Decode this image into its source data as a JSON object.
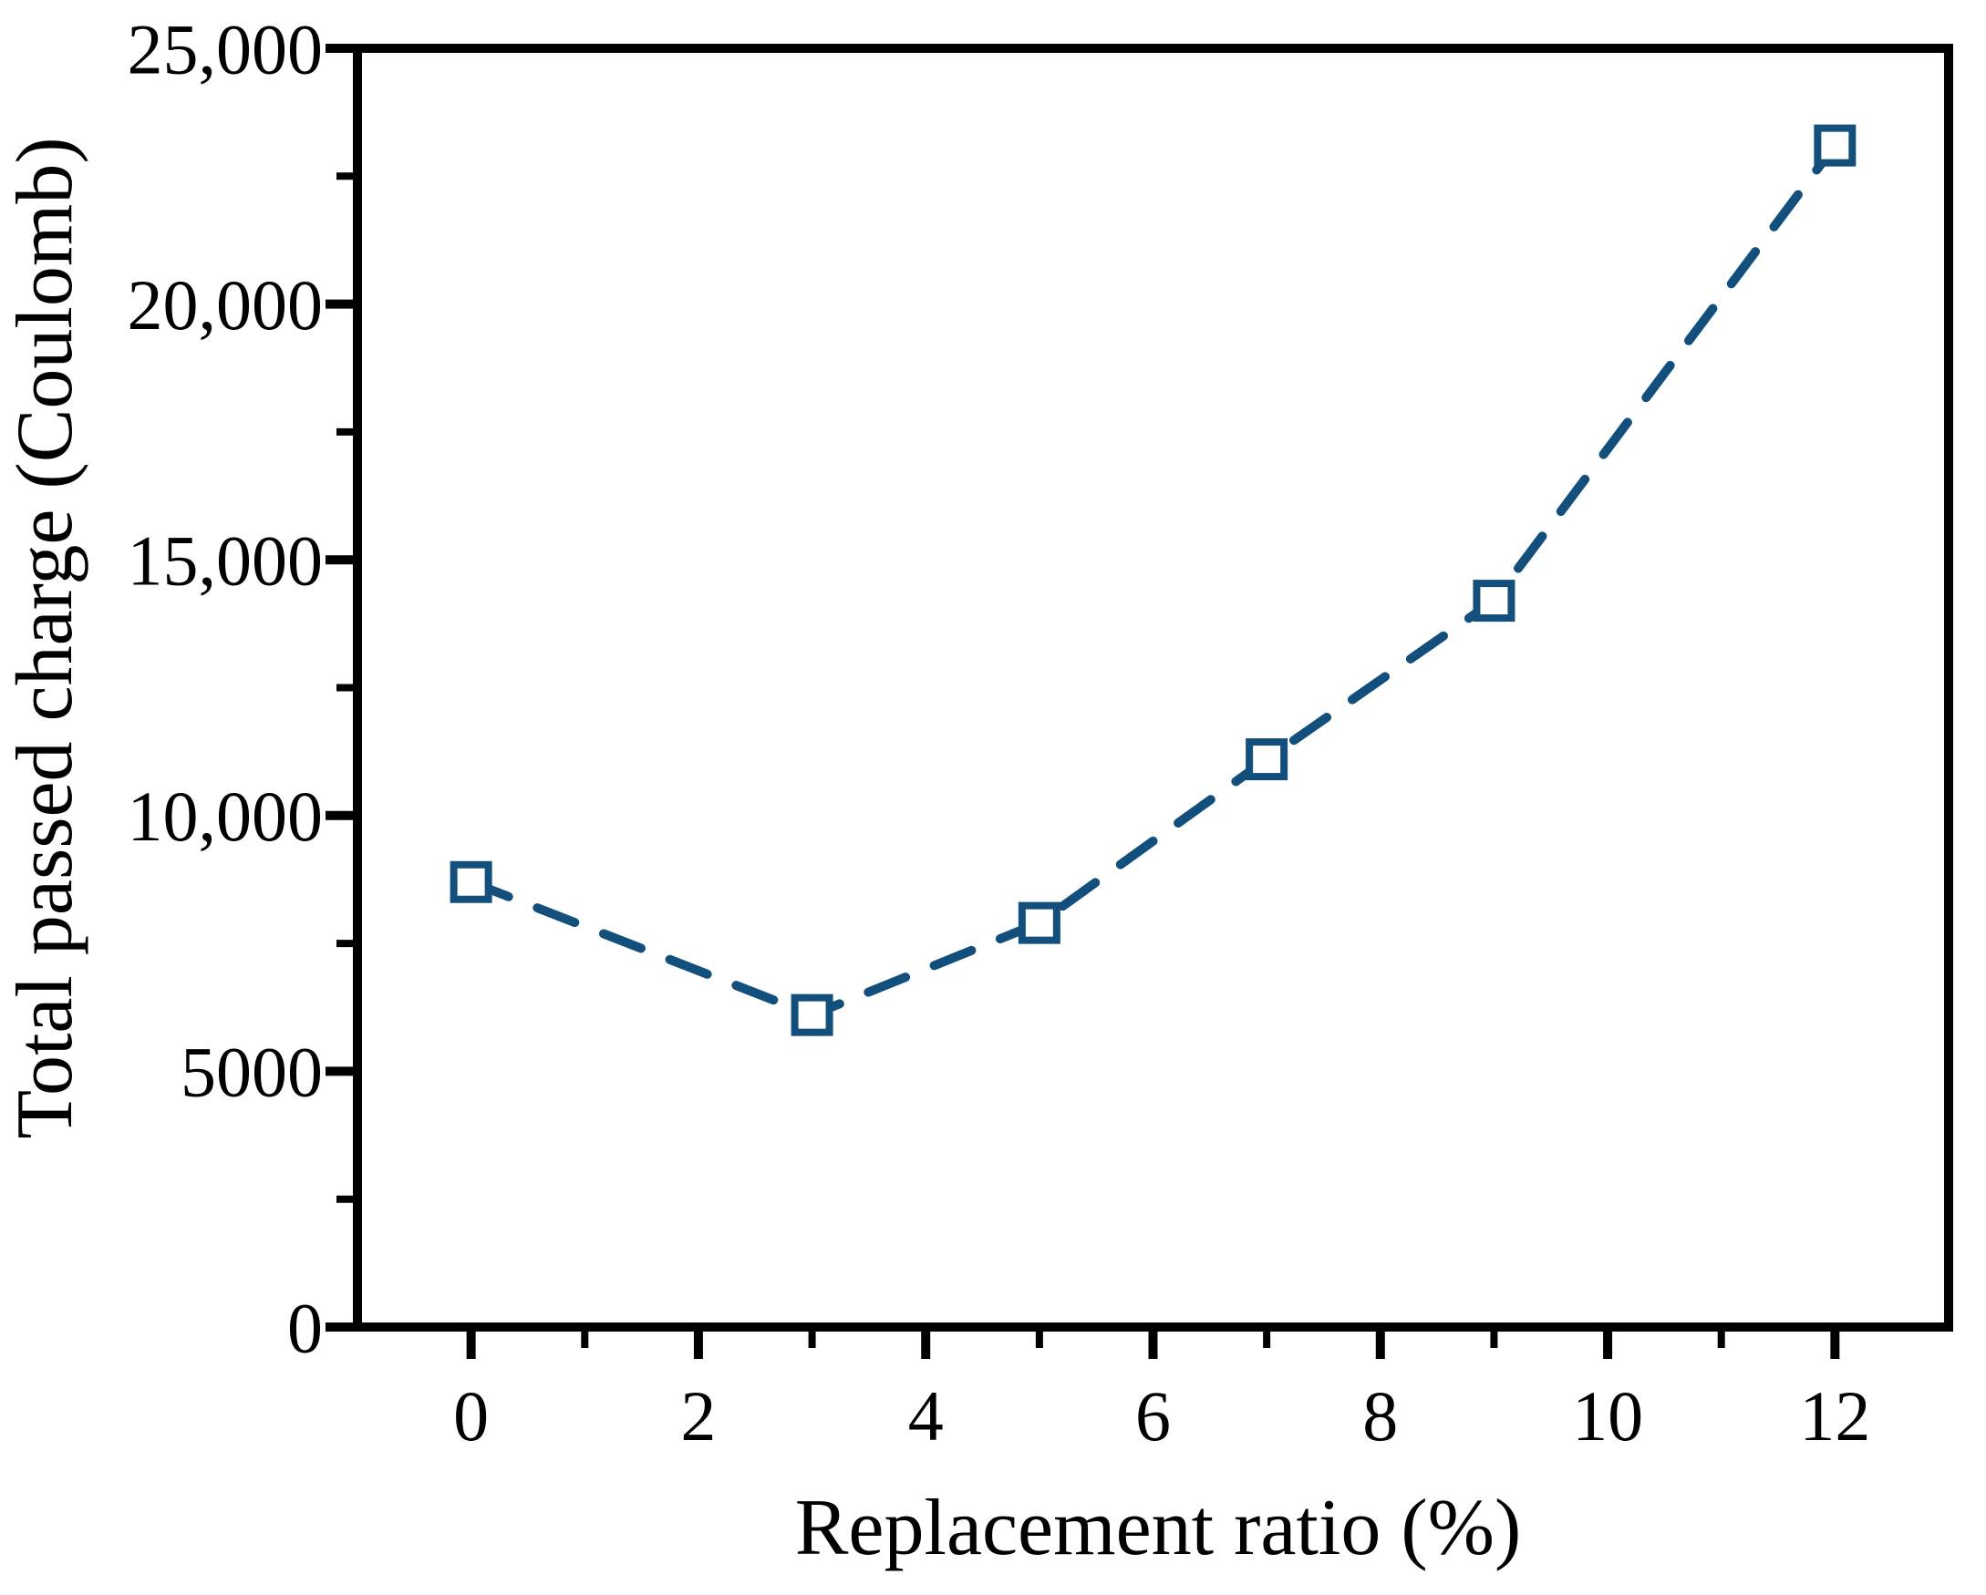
{
  "chart_data": {
    "type": "line",
    "title": "",
    "xlabel": "Replacement ratio (%)",
    "ylabel": "Total passed charge (Coulomb)",
    "series": [
      {
        "name": "Total passed charge",
        "x": [
          0,
          3,
          5,
          7,
          9,
          12
        ],
        "y": [
          8700,
          6100,
          7900,
          11100,
          14200,
          23100
        ]
      }
    ],
    "xlim": [
      -1,
      13
    ],
    "ylim": [
      0,
      25000
    ],
    "x_major_ticks": [
      0,
      2,
      4,
      6,
      8,
      10,
      12
    ],
    "x_tick_labels": [
      "0",
      "2",
      "4",
      "6",
      "8",
      "10",
      "12"
    ],
    "x_minor_ticks": [
      1,
      3,
      5,
      7,
      9,
      11
    ],
    "y_major_ticks": [
      0,
      5000,
      10000,
      15000,
      20000,
      25000
    ],
    "y_tick_labels": [
      "0",
      "5000",
      "10,000",
      "15,000",
      "20,000",
      "25,000"
    ],
    "y_minor_ticks": [
      2500,
      7500,
      12500,
      17500,
      22500
    ],
    "grid": false,
    "legend": false,
    "line_style": "dashed",
    "marker": "open-square",
    "line_color": "#134F7C",
    "marker_fill": "#FFFFFF",
    "axis_color": "#000000",
    "background": "#FFFFFF"
  }
}
